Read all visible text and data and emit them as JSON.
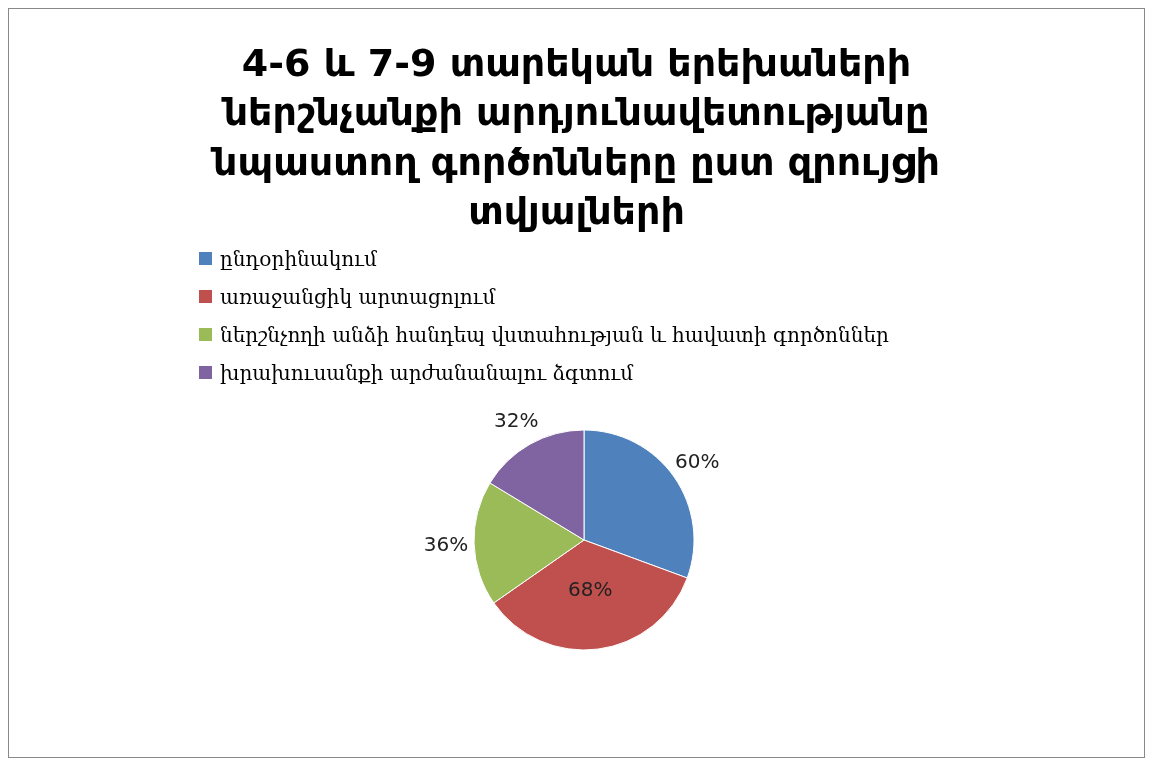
{
  "chart_data": {
    "type": "pie",
    "title": "4-6 և 7-9 տարեկան երեխաների ներշնչանքի արդյունավետությանը նպաստող գործոնները ըստ զրույցի տվյալների",
    "categories": [
      "ընդօրինակում",
      "առաջանցիկ արտացոլում",
      "ներշնչողի անձի հանդեպ վստահության և հավատի գործոններ",
      "խրախուսանքի արժանանալու ձգտում"
    ],
    "values": [
      60,
      68,
      36,
      32
    ],
    "value_labels": [
      "60%",
      "68%",
      "36%",
      "32%"
    ],
    "colors": [
      "#4f81bd",
      "#c0504d",
      "#9bbb59",
      "#8064a2"
    ],
    "legend": "top left"
  }
}
